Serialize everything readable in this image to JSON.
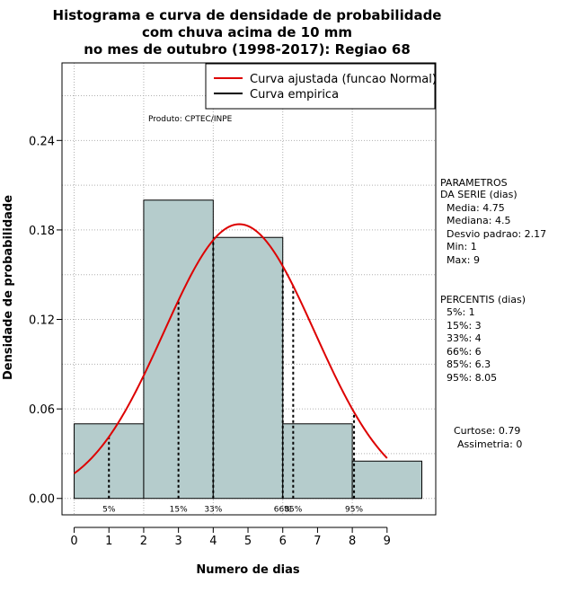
{
  "chart_data": {
    "type": "bar",
    "title_lines": [
      "Histograma e curva de densidade de probabilidade",
      "com chuva acima de 10 mm",
      "no mes de outubro (1998-2017): Regiao 68"
    ],
    "xlabel": "Numero de dias",
    "ylabel": "Densidade de probabilidade",
    "xlim": [
      -0.35,
      10.4
    ],
    "ylim": [
      -0.011,
      0.292
    ],
    "x_ticks": [
      0,
      1,
      2,
      3,
      4,
      5,
      6,
      7,
      8,
      9
    ],
    "x_tick_labels": [
      "0",
      "1",
      "2",
      "3",
      "4",
      "5",
      "6",
      "7",
      "8",
      "9"
    ],
    "y_ticks": [
      0.0,
      0.06,
      0.12,
      0.18,
      0.24
    ],
    "y_tick_labels": [
      "0.00",
      "0.06",
      "0.12",
      "0.18",
      "0.24"
    ],
    "grid": true,
    "bars": [
      {
        "x0": 0,
        "x1": 2,
        "value": 0.05
      },
      {
        "x0": 2,
        "x1": 4,
        "value": 0.2
      },
      {
        "x0": 4,
        "x1": 6,
        "value": 0.175
      },
      {
        "x0": 6,
        "x1": 8,
        "value": 0.05
      },
      {
        "x0": 8,
        "x1": 10,
        "value": 0.025
      }
    ],
    "bar_color": "#b5cccc",
    "normal_fit": {
      "mean": 4.75,
      "sd": 2.17,
      "x_range": [
        0,
        9
      ],
      "color": "#dd0000"
    },
    "percentile_lines": [
      {
        "label": "5%",
        "x": 1
      },
      {
        "label": "15%",
        "x": 3
      },
      {
        "label": "33%",
        "x": 4
      },
      {
        "label": "66%",
        "x": 6
      },
      {
        "label": "85%",
        "x": 6.3
      },
      {
        "label": "95%",
        "x": 8.05
      }
    ],
    "legend": {
      "position": "top-right",
      "entries": [
        {
          "label": "Curva ajustada (funcao Normal)",
          "color": "#dd0000"
        },
        {
          "label": "Curva empirica",
          "color": "#000000"
        }
      ]
    },
    "credit": "Produto: CPTEC/INPE",
    "parametros": {
      "heading": [
        "PARAMETROS",
        "DA SERIE (dias)"
      ],
      "items": [
        "Media: 4.75",
        "Mediana: 4.5",
        "Desvio padrao: 2.17",
        "Min: 1",
        "Max: 9"
      ]
    },
    "percentis": {
      "heading": "PERCENTIS (dias)",
      "items": [
        "5%: 1",
        "15%: 3",
        "33%: 4",
        "66%: 6",
        "85%: 6.3",
        "95%: 8.05"
      ]
    },
    "shape_stats": [
      "Curtose: 0.79",
      "Assimetria: 0"
    ]
  }
}
